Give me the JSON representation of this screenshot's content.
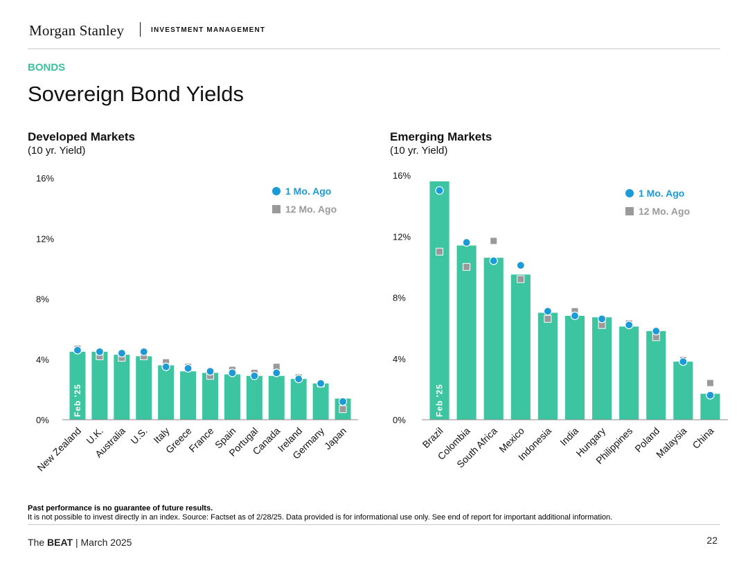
{
  "header": {
    "brand": "Morgan Stanley",
    "division": "INVESTMENT MANAGEMENT"
  },
  "section": "BONDS",
  "title": "Sovereign Bond Yields",
  "colors": {
    "bar": "#3cc5a0",
    "one_month": "#1a9ad6",
    "twelve_month": "#9a9a9a",
    "section": "#3cc0a0"
  },
  "chart_data": [
    {
      "type": "bar",
      "title": "Developed Markets",
      "subtitle": "(10 yr. Yield)",
      "bar_label": "Feb '25",
      "categories": [
        "New Zealand",
        "U.K.",
        "Australia",
        "U.S.",
        "Italy",
        "Greece",
        "France",
        "Spain",
        "Portugal",
        "Canada",
        "Ireland",
        "Germany",
        "Japan"
      ],
      "series": [
        {
          "name": "Feb '25",
          "values": [
            4.5,
            4.5,
            4.3,
            4.2,
            3.6,
            3.2,
            3.1,
            3.0,
            2.9,
            2.9,
            2.7,
            2.4,
            1.4
          ]
        },
        {
          "name": "1 Mo. Ago",
          "values": [
            4.6,
            4.5,
            4.4,
            4.5,
            3.5,
            3.4,
            3.2,
            3.1,
            2.9,
            3.1,
            2.7,
            2.4,
            1.2
          ]
        },
        {
          "name": "12 Mo. Ago",
          "values": [
            4.7,
            4.2,
            4.1,
            4.2,
            3.8,
            3.5,
            2.9,
            3.3,
            3.1,
            3.5,
            2.8,
            2.4,
            0.7
          ]
        }
      ],
      "ylim": [
        0,
        16
      ],
      "yticks": [
        "0%",
        "4%",
        "8%",
        "12%",
        "16%"
      ],
      "legend": [
        "1 Mo. Ago",
        "12 Mo. Ago"
      ],
      "legend_position": "top-right"
    },
    {
      "type": "bar",
      "title": "Emerging Markets",
      "subtitle": "(10 yr. Yield)",
      "bar_label": "Feb '25",
      "categories": [
        "Brazil",
        "Colombia",
        "South Africa",
        "Mexico",
        "Indonesia",
        "India",
        "Hungary",
        "Philippines",
        "Poland",
        "Malaysia",
        "China"
      ],
      "series": [
        {
          "name": "Feb '25",
          "values": [
            15.6,
            11.4,
            10.6,
            9.5,
            7.0,
            6.8,
            6.7,
            6.1,
            5.8,
            3.8,
            1.7
          ]
        },
        {
          "name": "1 Mo. Ago",
          "values": [
            15.0,
            11.6,
            10.4,
            10.1,
            7.1,
            6.8,
            6.6,
            6.2,
            5.8,
            3.8,
            1.6
          ]
        },
        {
          "name": "12 Mo. Ago",
          "values": [
            11.0,
            10.0,
            11.7,
            9.2,
            6.6,
            7.1,
            6.2,
            6.3,
            5.4,
            3.9,
            2.4
          ]
        }
      ],
      "ylim": [
        0,
        16
      ],
      "yticks": [
        "0%",
        "4%",
        "8%",
        "12%",
        "16%"
      ],
      "legend": [
        "1 Mo. Ago",
        "12 Mo. Ago"
      ],
      "legend_position": "top-right"
    }
  ],
  "footnote": {
    "bold": "Past performance is no guarantee of future results.",
    "text": "It is not possible to invest directly in an index. Source: Factset as of 2/28/25. Data provided is for informational use only. See end of report for important additional information."
  },
  "footer": {
    "prefix": "The ",
    "publication": "BEAT",
    "suffix": " | March 2025",
    "page": "22"
  }
}
